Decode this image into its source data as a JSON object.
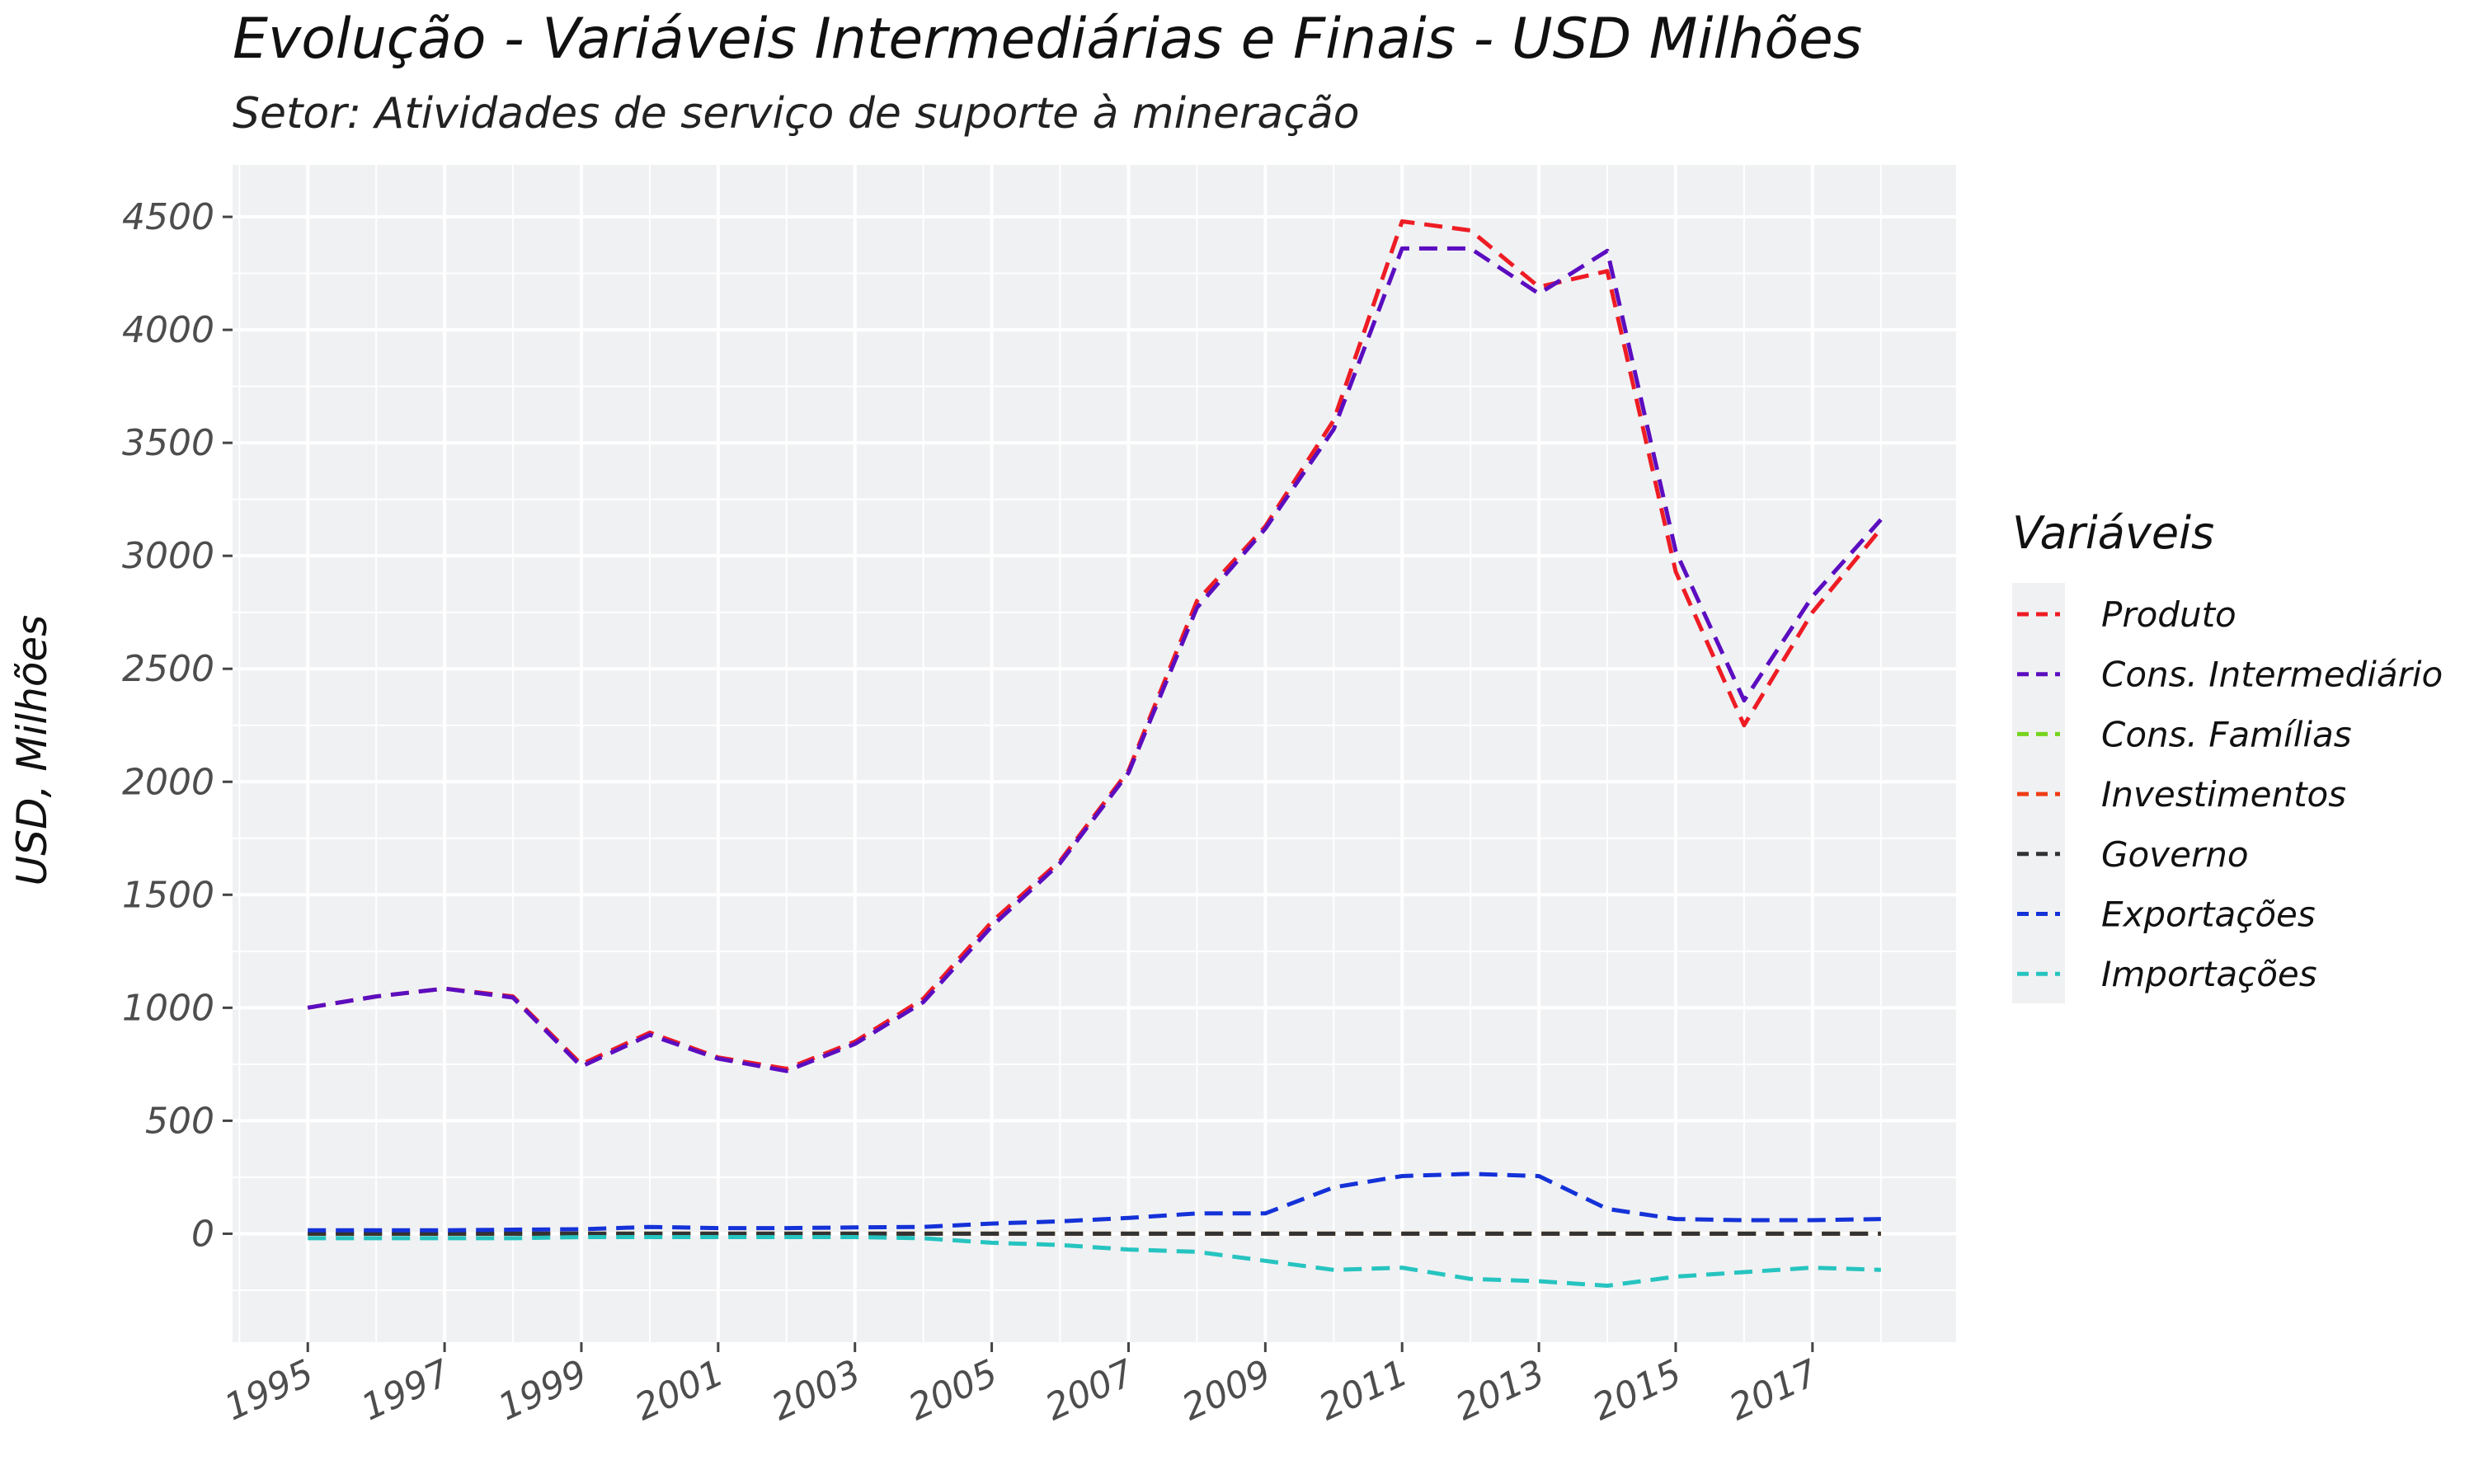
{
  "chart_data": {
    "type": "line",
    "title": "Evolução - Variáveis Intermediárias e Finais - USD Milhões",
    "subtitle": "Setor: Atividades de serviço de suporte à mineração",
    "xlabel": "",
    "ylabel": "USD, Milhões",
    "xlim": [
      1993.9,
      2019.1
    ],
    "ylim": [
      -480,
      4730
    ],
    "x_ticks": [
      1995,
      1997,
      1999,
      2001,
      2003,
      2005,
      2007,
      2009,
      2011,
      2013,
      2015,
      2017
    ],
    "x_tick_labels": [
      "1995",
      "1997",
      "1999",
      "2001",
      "2003",
      "2005",
      "2007",
      "2009",
      "2011",
      "2013",
      "2015",
      "2017"
    ],
    "y_ticks": [
      0,
      500,
      1000,
      1500,
      2000,
      2500,
      3000,
      3500,
      4000,
      4500
    ],
    "y_tick_labels": [
      "0",
      "500",
      "1000",
      "1500",
      "2000",
      "2500",
      "3000",
      "3500",
      "4000",
      "4500"
    ],
    "grid": true,
    "background": "#f0f1f3",
    "line_style": "dashed",
    "legend": {
      "title": "Variáveis",
      "position": "right"
    },
    "x": [
      1995,
      1996,
      1997,
      1998,
      1999,
      2000,
      2001,
      2002,
      2003,
      2004,
      2005,
      2006,
      2007,
      2008,
      2009,
      2010,
      2011,
      2012,
      2013,
      2014,
      2015,
      2016,
      2017,
      2018
    ],
    "series": [
      {
        "name": "Produto",
        "color": "#ee1c24",
        "values": [
          1000,
          1050,
          1085,
          1050,
          750,
          890,
          780,
          730,
          850,
          1040,
          1380,
          1650,
          2050,
          2800,
          3130,
          3600,
          4480,
          4440,
          4190,
          4260,
          2930,
          2250,
          2750,
          3120
        ]
      },
      {
        "name": "Cons. Intermediário",
        "color": "#5b0dc0",
        "values": [
          1000,
          1050,
          1085,
          1045,
          740,
          880,
          775,
          720,
          840,
          1025,
          1360,
          1640,
          2040,
          2770,
          3120,
          3560,
          4360,
          4360,
          4160,
          4350,
          3020,
          2360,
          2820,
          3160
        ]
      },
      {
        "name": "Cons. Famílias",
        "color": "#76d41c",
        "values": [
          0,
          0,
          0,
          0,
          0,
          0,
          0,
          0,
          0,
          0,
          0,
          0,
          0,
          0,
          0,
          0,
          0,
          0,
          0,
          0,
          0,
          0,
          0,
          0
        ]
      },
      {
        "name": "Investimentos",
        "color": "#f03c14",
        "values": [
          0,
          0,
          0,
          0,
          0,
          0,
          0,
          0,
          0,
          0,
          0,
          0,
          0,
          0,
          0,
          0,
          0,
          0,
          0,
          0,
          0,
          0,
          0,
          0
        ]
      },
      {
        "name": "Governo",
        "color": "#333333",
        "values": [
          0,
          0,
          0,
          0,
          0,
          0,
          0,
          0,
          0,
          0,
          0,
          0,
          0,
          0,
          0,
          0,
          0,
          0,
          0,
          0,
          0,
          0,
          0,
          0
        ]
      },
      {
        "name": "Exportações",
        "color": "#1432d8",
        "values": [
          15,
          15,
          15,
          18,
          20,
          30,
          25,
          25,
          28,
          30,
          45,
          55,
          70,
          90,
          90,
          205,
          255,
          265,
          255,
          110,
          65,
          60,
          60,
          65
        ]
      },
      {
        "name": "Importações",
        "color": "#26c4c0",
        "values": [
          -20,
          -20,
          -20,
          -20,
          -15,
          -15,
          -15,
          -15,
          -15,
          -20,
          -40,
          -50,
          -70,
          -80,
          -120,
          -160,
          -150,
          -200,
          -210,
          -230,
          -190,
          -170,
          -150,
          -160
        ]
      }
    ]
  }
}
